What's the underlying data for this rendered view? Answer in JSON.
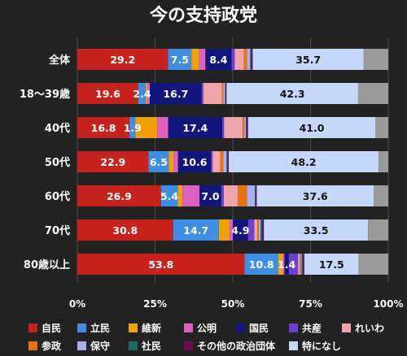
{
  "chart_data": {
    "type": "bar",
    "orientation": "horizontal",
    "stacked": true,
    "title": "今の支持政党",
    "categories": [
      "全体",
      "18～39歳",
      "40代",
      "50代",
      "60代",
      "70代",
      "80歳以上"
    ],
    "series": [
      {
        "name": "自民",
        "color": "#c8221c",
        "values": [
          29.2,
          19.6,
          16.8,
          22.9,
          26.9,
          30.8,
          53.8
        ]
      },
      {
        "name": "立民",
        "color": "#3d8fe6",
        "values": [
          7.5,
          2.4,
          1.9,
          6.5,
          5.4,
          14.7,
          10.8
        ]
      },
      {
        "name": "維新",
        "color": "#f2a007",
        "values": [
          2.5,
          0.5,
          7.0,
          1.5,
          1.5,
          3.5,
          1.5
        ]
      },
      {
        "name": "公明",
        "color": "#dd5fbf",
        "values": [
          2.0,
          0.8,
          3.5,
          1.5,
          5.5,
          1.0,
          0.5
        ]
      },
      {
        "name": "国民",
        "color": "#11167f",
        "values": [
          8.4,
          16.7,
          17.4,
          10.6,
          7.0,
          4.9,
          1.4
        ]
      },
      {
        "name": "共産",
        "color": "#6e3fd1",
        "values": [
          1.0,
          0.5,
          0.6,
          0.5,
          0.8,
          2.0,
          3.0
        ]
      },
      {
        "name": "れいわ",
        "color": "#efa3ab",
        "values": [
          3.0,
          6.0,
          6.0,
          2.5,
          4.5,
          1.0,
          0.5
        ]
      },
      {
        "name": "参政",
        "color": "#e8740f",
        "values": [
          1.0,
          0.5,
          0.5,
          1.0,
          3.0,
          0.5,
          0.3
        ]
      },
      {
        "name": "保守",
        "color": "#a9aef3",
        "values": [
          1.0,
          0.5,
          0.5,
          1.0,
          2.5,
          0.5,
          0.3
        ]
      },
      {
        "name": "社民",
        "color": "#1e6a6b",
        "values": [
          0.3,
          0.2,
          0.2,
          0.3,
          0.3,
          0.6,
          0.4
        ]
      },
      {
        "name": "その他の政治団体",
        "color": "#6b0d57",
        "values": [
          0.5,
          0.3,
          0.5,
          0.4,
          0.3,
          0.5,
          0.5
        ]
      },
      {
        "name": "特になし",
        "color": "#c4d8fb",
        "values": [
          35.7,
          42.3,
          41.0,
          48.2,
          37.6,
          33.5,
          17.5
        ]
      }
    ],
    "remainder_color": "#9a9a9a",
    "data_labels": [
      [
        29.2,
        7.5,
        null,
        null,
        8.4,
        null,
        null,
        null,
        null,
        null,
        null,
        35.7
      ],
      [
        19.6,
        2.4,
        null,
        null,
        16.7,
        null,
        null,
        null,
        null,
        null,
        null,
        42.3
      ],
      [
        16.8,
        1.9,
        null,
        null,
        17.4,
        null,
        null,
        null,
        null,
        null,
        null,
        41.0
      ],
      [
        22.9,
        6.5,
        null,
        null,
        10.6,
        null,
        null,
        null,
        null,
        null,
        null,
        48.2
      ],
      [
        26.9,
        5.4,
        null,
        null,
        7.0,
        null,
        null,
        null,
        null,
        null,
        null,
        37.6
      ],
      [
        30.8,
        14.7,
        null,
        null,
        4.9,
        null,
        null,
        null,
        null,
        null,
        null,
        33.5
      ],
      [
        53.8,
        10.8,
        null,
        null,
        1.4,
        null,
        null,
        null,
        null,
        null,
        null,
        17.5
      ]
    ],
    "xlim": [
      0,
      100
    ],
    "xticks": [
      "0%",
      "25%",
      "50%",
      "75%",
      "100%"
    ],
    "grid": true,
    "legend_position": "bottom"
  }
}
